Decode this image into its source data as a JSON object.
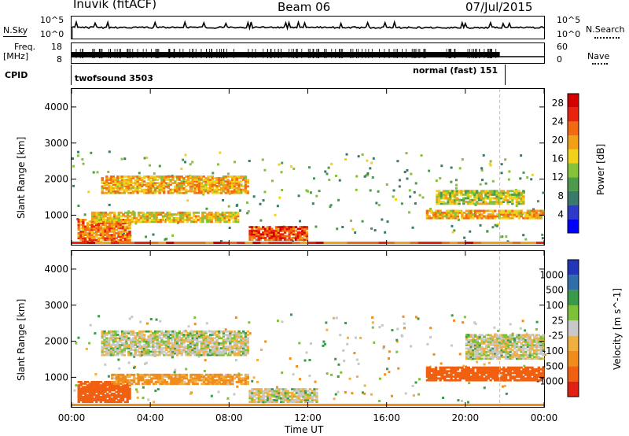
{
  "header": {
    "title": "Inuvik (fitACF)",
    "beam": "Beam 06",
    "date": "07/Jul/2015"
  },
  "strip_panels": {
    "nsky_label": "N.Sky",
    "nsky_ticks": [
      "10^5",
      "10^0"
    ],
    "nsearch_label": "N.Search",
    "nsearch_ticks": [
      "10^5",
      "10^0"
    ],
    "freq_label_1": "Freq.",
    "freq_label_2": "[MHz]",
    "freq_ticks": [
      "18",
      "8"
    ],
    "nave_label": "Nave",
    "nave_ticks": [
      "60",
      "0"
    ],
    "cpid_label": "CPID",
    "cpid_left": "twofsound 3503",
    "cpid_right": "normal (fast) 151"
  },
  "chart_data": [
    {
      "type": "heatmap",
      "title": "Power",
      "ylabel": "Slant Range [km]",
      "xlabel": "Time UT",
      "x_ticks": [
        "00:00",
        "04:00",
        "08:00",
        "12:00",
        "16:00",
        "20:00",
        "00:00"
      ],
      "xlim_hours": [
        0,
        24
      ],
      "ylim": [
        180,
        4500
      ],
      "y_ticks": [
        "1000",
        "2000",
        "3000",
        "4000"
      ],
      "colorbar": {
        "label": "Power [dB]",
        "ticks": [
          "4",
          "8",
          "12",
          "16",
          "20",
          "24",
          "28"
        ],
        "range": [
          0,
          30
        ]
      },
      "regions": [
        {
          "x": [
            0.3,
            3.0
          ],
          "y": [
            250,
            900
          ],
          "value": 27
        },
        {
          "x": [
            1.5,
            9.0
          ],
          "y": [
            1600,
            2100
          ],
          "value": 24
        },
        {
          "x": [
            1.0,
            8.5
          ],
          "y": [
            800,
            1100
          ],
          "value": 22
        },
        {
          "x": [
            9.0,
            12.0
          ],
          "y": [
            300,
            700
          ],
          "value": 29
        },
        {
          "x": [
            18.0,
            24.0
          ],
          "y": [
            900,
            1150
          ],
          "value": 24
        },
        {
          "x": [
            18.5,
            23.0
          ],
          "y": [
            1300,
            1700
          ],
          "value": 20
        }
      ]
    },
    {
      "type": "heatmap",
      "title": "Velocity",
      "ylabel": "Slant Range [km]",
      "xlabel": "Time UT",
      "x_ticks": [
        "00:00",
        "04:00",
        "08:00",
        "12:00",
        "16:00",
        "20:00",
        "00:00"
      ],
      "xlim_hours": [
        0,
        24
      ],
      "ylim": [
        180,
        4500
      ],
      "y_ticks": [
        "1000",
        "2000",
        "3000",
        "4000"
      ],
      "colorbar": {
        "label": "Velocity [m s^-1]",
        "ticks": [
          "1000",
          "500",
          "100",
          "25",
          "-25",
          "-100",
          "-500",
          "-1000"
        ],
        "range": [
          -1000,
          1000
        ]
      },
      "regions": [
        {
          "x": [
            0.3,
            3.0
          ],
          "y": [
            300,
            900
          ],
          "value": -300
        },
        {
          "x": [
            1.5,
            9.0
          ],
          "y": [
            1600,
            2300
          ],
          "value": 0
        },
        {
          "x": [
            2.0,
            9.0
          ],
          "y": [
            800,
            1100
          ],
          "value": -80
        },
        {
          "x": [
            9.0,
            12.5
          ],
          "y": [
            300,
            700
          ],
          "value": 0
        },
        {
          "x": [
            18.0,
            24.0
          ],
          "y": [
            900,
            1300
          ],
          "value": -400
        },
        {
          "x": [
            20.0,
            24.0
          ],
          "y": [
            1500,
            2200
          ],
          "value": 0
        }
      ]
    }
  ]
}
